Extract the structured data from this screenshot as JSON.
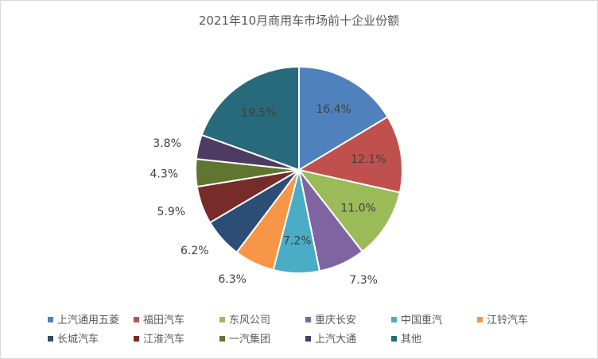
{
  "chart_data": {
    "type": "pie",
    "title": "2021年10月商用车市场前十企业份额",
    "categories": [
      "上汽通用五菱",
      "福田汽车",
      "东风公司",
      "重庆长安",
      "中国重汽",
      "江铃汽车",
      "长城汽车",
      "江淮汽车",
      "一汽集团",
      "上汽大通",
      "其他"
    ],
    "values": [
      16.4,
      12.1,
      11.0,
      7.3,
      7.2,
      6.3,
      6.2,
      5.9,
      4.3,
      3.8,
      19.5
    ],
    "data_labels": [
      "16.4%",
      "12.1%",
      "11.0%",
      "7.3%",
      "7.2%",
      "6.3%",
      "6.2%",
      "5.9%",
      "4.3%",
      "3.8%",
      "19.5%"
    ],
    "colors": [
      "#4f81bd",
      "#c0504d",
      "#9bbb59",
      "#8064a2",
      "#4bacc6",
      "#f79646",
      "#2c4d75",
      "#772c2a",
      "#5f7530",
      "#4d3b62",
      "#276a7c"
    ],
    "start_angle": "12 o'clock",
    "direction": "clockwise",
    "legend_position": "bottom"
  }
}
